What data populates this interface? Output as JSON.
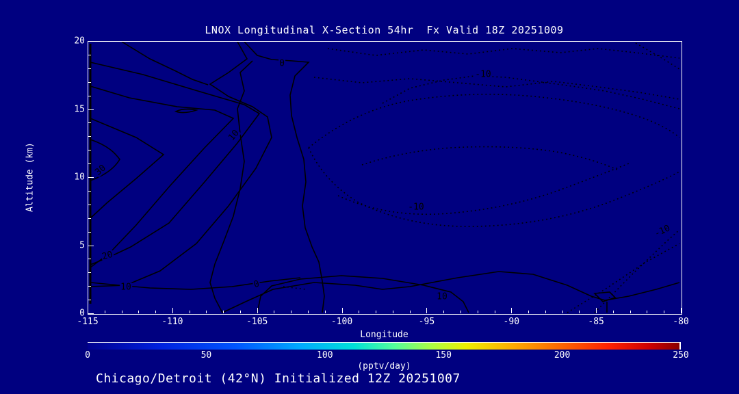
{
  "title": "LNOX Longitudinal X-Section 54hr  Fx Valid 18Z 20251009",
  "footer": "Chicago/Detroit (42°N) Initialized 12Z 20251007",
  "chart_data": {
    "type": "contour",
    "title": "LNOX Longitudinal X-Section 54hr  Fx Valid 18Z 20251009",
    "subtitle": "Chicago/Detroit (42°N) Initialized 12Z 20251007",
    "xlabel": "Longitude",
    "ylabel": "Altitude (km)",
    "xlim": [
      -115,
      -80
    ],
    "ylim": [
      0,
      20
    ],
    "x_major_ticks": [
      -115,
      -110,
      -105,
      -100,
      -95,
      -90,
      -85,
      -80
    ],
    "x_minor_step": 1,
    "y_major_ticks": [
      0,
      5,
      10,
      15,
      20
    ],
    "y_minor_step": 1,
    "grid": false,
    "solid_contour_levels": [
      0,
      10,
      20,
      30
    ],
    "dashed_contour_levels": [
      -10
    ],
    "contour_labels": [
      {
        "text": "0",
        "x": 283,
        "y": 32,
        "rot": 0
      },
      {
        "text": "10",
        "x": 213,
        "y": 137,
        "rot": -50
      },
      {
        "text": "30",
        "x": 18,
        "y": 188,
        "rot": -40
      },
      {
        "text": "20",
        "x": 28,
        "y": 313,
        "rot": -15
      },
      {
        "text": "10",
        "x": 55,
        "y": 359,
        "rot": 0
      },
      {
        "text": "0",
        "x": 246,
        "y": 355,
        "rot": -15
      },
      {
        "text": "10",
        "x": 517,
        "y": 373,
        "rot": 0
      },
      {
        "text": "-10",
        "x": 577,
        "y": 48,
        "rot": 0
      },
      {
        "text": "-10",
        "x": 479,
        "y": 242,
        "rot": 0
      },
      {
        "text": "-10",
        "x": 839,
        "y": 277,
        "rot": -25
      }
    ],
    "colorbar": {
      "min": 0,
      "max": 250,
      "ticks": [
        0,
        50,
        100,
        150,
        200,
        250
      ],
      "units": "(pptv/day)",
      "stops": [
        [
          0,
          "#000090"
        ],
        [
          0.12,
          "#0020dd"
        ],
        [
          0.25,
          "#0055ff"
        ],
        [
          0.36,
          "#00aaff"
        ],
        [
          0.45,
          "#00e0d8"
        ],
        [
          0.52,
          "#55ff99"
        ],
        [
          0.58,
          "#aaff44"
        ],
        [
          0.64,
          "#eeee00"
        ],
        [
          0.72,
          "#ffaa00"
        ],
        [
          0.8,
          "#ff6600"
        ],
        [
          0.88,
          "#ff2200"
        ],
        [
          0.95,
          "#cc0000"
        ],
        [
          1,
          "#8b0000"
        ]
      ]
    },
    "colors": {
      "background": "#000080",
      "contour_line": "#000000",
      "text": "#ffffff"
    }
  }
}
